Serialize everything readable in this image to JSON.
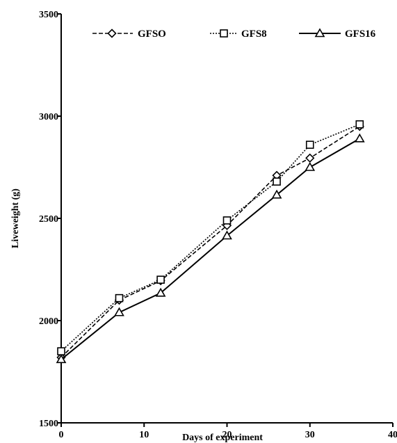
{
  "chart_data": {
    "type": "line",
    "xlabel": "Days of experiment",
    "ylabel": "Liveweight (g)",
    "xlim": [
      0,
      40
    ],
    "ylim": [
      1500,
      3500
    ],
    "xticks": [
      "0",
      "10",
      "20",
      "30",
      "40"
    ],
    "yticks": [
      "1500",
      "2000",
      "2500",
      "3000",
      "3500"
    ],
    "grid": false,
    "legend_position": "top",
    "series": [
      {
        "name": "GFSO",
        "marker": "diamond",
        "dash": "dashed",
        "points": [
          [
            0,
            1820
          ],
          [
            7,
            2100
          ],
          [
            12,
            2195
          ],
          [
            20,
            2465
          ],
          [
            26,
            2710
          ],
          [
            30,
            2795
          ],
          [
            36,
            2950
          ]
        ]
      },
      {
        "name": "GFS8",
        "marker": "square",
        "dash": "dotted",
        "points": [
          [
            0,
            1850
          ],
          [
            7,
            2110
          ],
          [
            12,
            2200
          ],
          [
            20,
            2490
          ],
          [
            26,
            2680
          ],
          [
            30,
            2860
          ],
          [
            36,
            2960
          ]
        ]
      },
      {
        "name": "GFS16",
        "marker": "triangle",
        "dash": "solid",
        "points": [
          [
            0,
            1810
          ],
          [
            7,
            2040
          ],
          [
            12,
            2135
          ],
          [
            20,
            2415
          ],
          [
            26,
            2615
          ],
          [
            30,
            2750
          ],
          [
            36,
            2890
          ]
        ]
      }
    ]
  }
}
